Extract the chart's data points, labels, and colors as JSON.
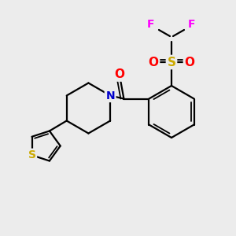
{
  "bg_color": "#ececec",
  "atom_colors": {
    "C": "#000000",
    "N": "#0000cc",
    "O": "#ff0000",
    "S_sulfonyl": "#ccaa00",
    "S_thio": "#ccaa00",
    "F": "#ff00ff"
  },
  "figsize": [
    3.0,
    3.0
  ],
  "dpi": 100,
  "lw": 1.6,
  "lw2": 1.3,
  "font_size": 10
}
